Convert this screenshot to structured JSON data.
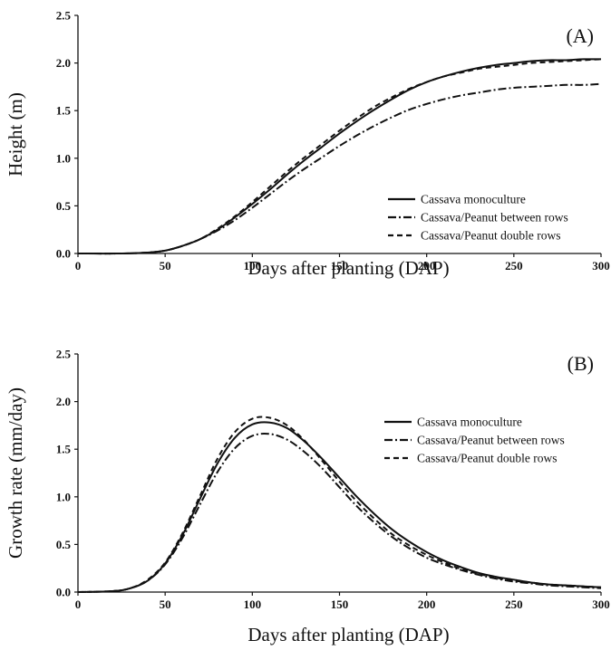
{
  "chart_data": [
    {
      "type": "line",
      "panel_label": "(A)",
      "xlabel": "Days after planting (DAP)",
      "ylabel": "Height (m)",
      "xlim": [
        0,
        300
      ],
      "ylim": [
        0,
        2.5
      ],
      "xticks": [
        "0",
        "50",
        "100",
        "150",
        "200",
        "250",
        "300"
      ],
      "yticks": [
        "0.0",
        "0.5",
        "1.0",
        "1.5",
        "2.0",
        "2.5"
      ],
      "grid": false,
      "legend_position": "bottom-right",
      "x": [
        0,
        25,
        40,
        50,
        60,
        70,
        80,
        90,
        100,
        110,
        120,
        130,
        140,
        150,
        160,
        170,
        180,
        190,
        200,
        210,
        220,
        230,
        240,
        250,
        260,
        270,
        280,
        290,
        300
      ],
      "series": [
        {
          "name": "Cassava monoculture",
          "style": "solid",
          "values": [
            0,
            0,
            0.01,
            0.03,
            0.08,
            0.15,
            0.25,
            0.38,
            0.52,
            0.67,
            0.83,
            0.98,
            1.12,
            1.26,
            1.39,
            1.51,
            1.62,
            1.72,
            1.8,
            1.86,
            1.91,
            1.95,
            1.98,
            2.0,
            2.02,
            2.03,
            2.03,
            2.04,
            2.04
          ]
        },
        {
          "name": "Cassava/Peanut between rows",
          "style": "dashdot",
          "values": [
            0,
            0,
            0.01,
            0.03,
            0.08,
            0.15,
            0.24,
            0.35,
            0.48,
            0.62,
            0.76,
            0.89,
            1.01,
            1.13,
            1.24,
            1.34,
            1.43,
            1.51,
            1.57,
            1.62,
            1.66,
            1.69,
            1.72,
            1.74,
            1.75,
            1.76,
            1.77,
            1.77,
            1.78
          ]
        },
        {
          "name": "Cassava/Peanut double rows",
          "style": "dashed",
          "values": [
            0,
            0,
            0.01,
            0.03,
            0.08,
            0.15,
            0.26,
            0.39,
            0.54,
            0.7,
            0.86,
            1.01,
            1.15,
            1.29,
            1.42,
            1.54,
            1.64,
            1.73,
            1.8,
            1.86,
            1.9,
            1.94,
            1.96,
            1.98,
            2.0,
            2.01,
            2.02,
            2.03,
            2.04
          ]
        }
      ]
    },
    {
      "type": "line",
      "panel_label": "(B)",
      "xlabel": "Days after planting (DAP)",
      "ylabel": "Growth rate (mm/day)",
      "xlim": [
        0,
        300
      ],
      "ylim": [
        0,
        2.5
      ],
      "xticks": [
        "0",
        "50",
        "100",
        "150",
        "200",
        "250",
        "300"
      ],
      "yticks": [
        "0.0",
        "0.5",
        "1.0",
        "1.5",
        "2.0",
        "2.5"
      ],
      "grid": false,
      "legend_position": "top-right",
      "x": [
        0,
        20,
        30,
        40,
        50,
        60,
        70,
        80,
        90,
        100,
        110,
        120,
        130,
        140,
        150,
        160,
        170,
        180,
        190,
        200,
        210,
        220,
        230,
        240,
        250,
        260,
        270,
        280,
        290,
        300
      ],
      "series": [
        {
          "name": "Cassava monoculture",
          "style": "solid",
          "values": [
            0,
            0.01,
            0.04,
            0.12,
            0.3,
            0.6,
            0.98,
            1.35,
            1.62,
            1.76,
            1.78,
            1.72,
            1.58,
            1.4,
            1.2,
            1.0,
            0.82,
            0.66,
            0.53,
            0.42,
            0.33,
            0.26,
            0.2,
            0.16,
            0.13,
            0.1,
            0.08,
            0.07,
            0.06,
            0.05
          ]
        },
        {
          "name": "Cassava/Peanut between rows",
          "style": "dashdot",
          "values": [
            0,
            0.01,
            0.04,
            0.12,
            0.29,
            0.57,
            0.92,
            1.26,
            1.51,
            1.64,
            1.66,
            1.6,
            1.47,
            1.3,
            1.1,
            0.9,
            0.73,
            0.58,
            0.46,
            0.36,
            0.29,
            0.23,
            0.18,
            0.14,
            0.11,
            0.09,
            0.07,
            0.06,
            0.05,
            0.04
          ]
        },
        {
          "name": "Cassava/Peanut double rows",
          "style": "dashed",
          "values": [
            0,
            0.01,
            0.04,
            0.13,
            0.31,
            0.62,
            1.01,
            1.4,
            1.68,
            1.82,
            1.83,
            1.75,
            1.59,
            1.38,
            1.16,
            0.95,
            0.77,
            0.61,
            0.49,
            0.39,
            0.31,
            0.24,
            0.19,
            0.15,
            0.12,
            0.1,
            0.08,
            0.07,
            0.06,
            0.05
          ]
        }
      ]
    }
  ]
}
